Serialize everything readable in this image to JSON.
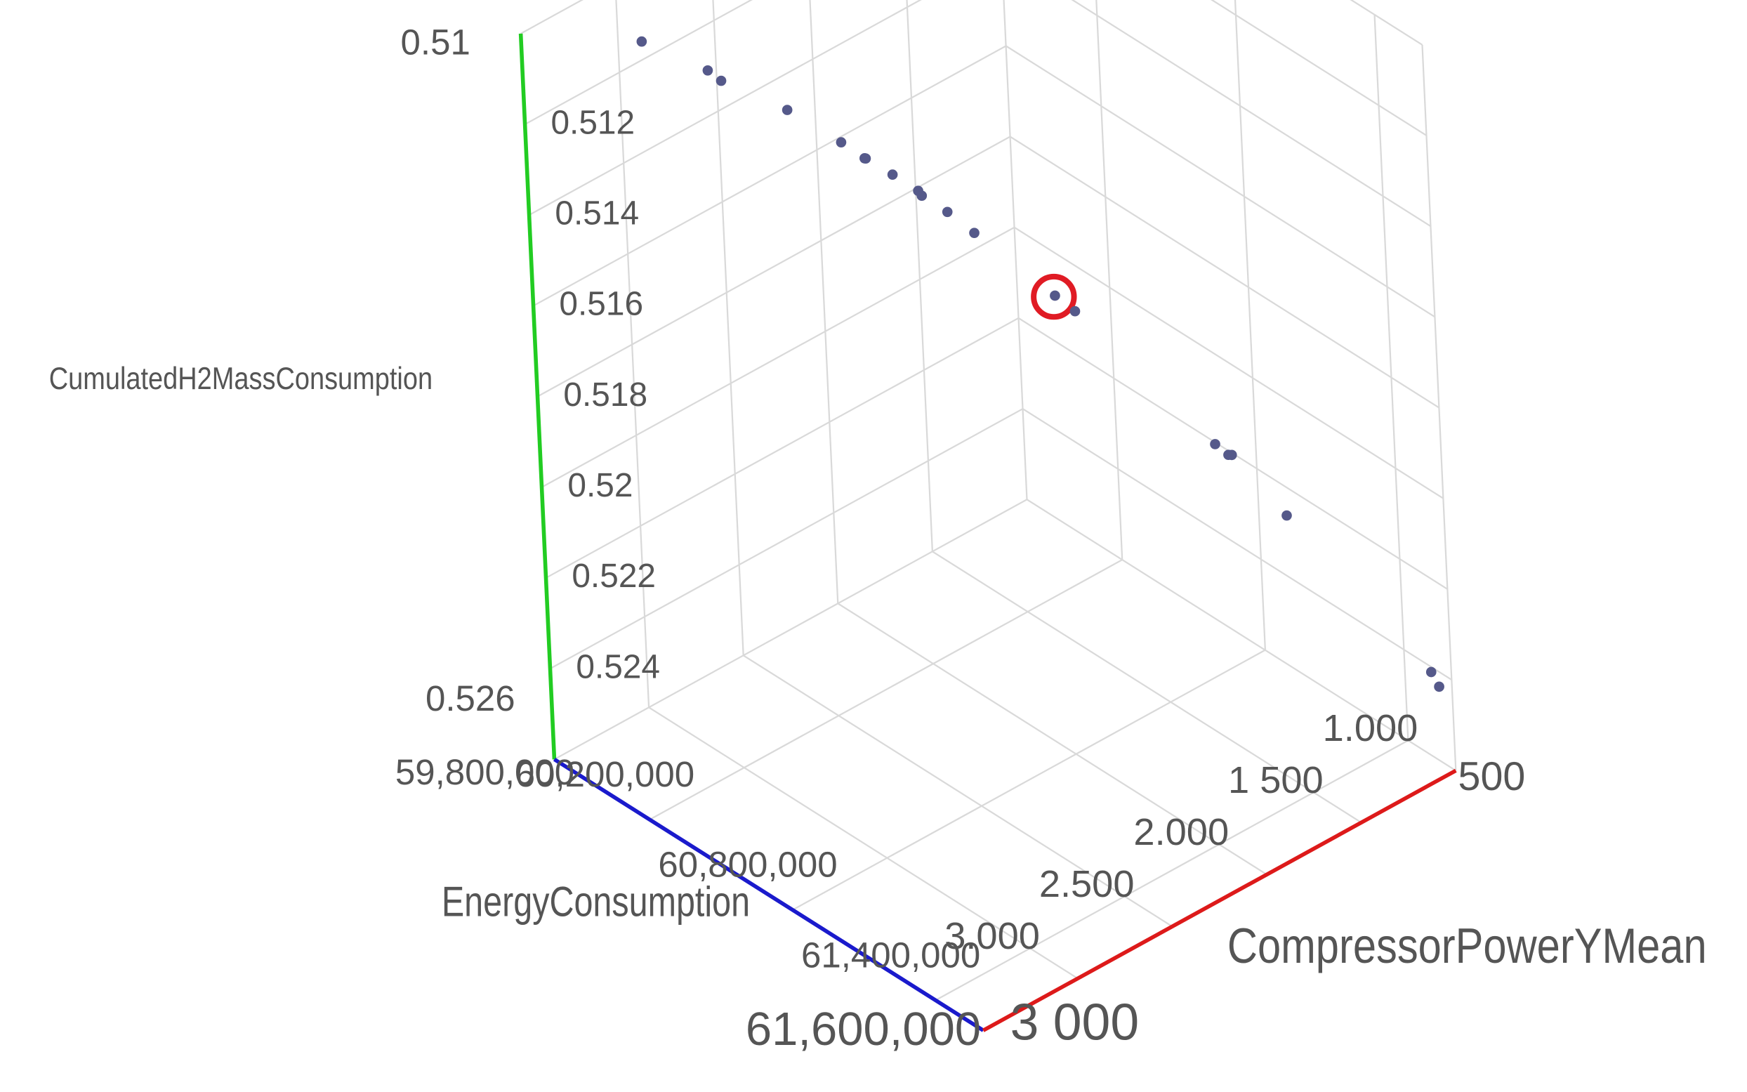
{
  "chart_data": {
    "type": "scatter3d",
    "xlabel": "EnergyConsumption",
    "ylabel": "CompressorPowerYMean",
    "zlabel": "CumulatedH2MassConsumption",
    "xlim": [
      59800000,
      61600000
    ],
    "xlim_labels": [
      "59,800,000",
      "61,600,000"
    ],
    "xticks": [
      {
        "value": 60200000,
        "label": "60,200,000"
      },
      {
        "value": 60800000,
        "label": "60,800,000"
      },
      {
        "value": 61400000,
        "label": "61,400,000"
      }
    ],
    "ylim": [
      3000,
      500
    ],
    "ylim_labels": [
      "3 000",
      "500"
    ],
    "yticks": [
      {
        "value": 1000,
        "label": "1.000"
      },
      {
        "value": 1500,
        "label": "1 500"
      },
      {
        "value": 2000,
        "label": "2.000"
      },
      {
        "value": 2500,
        "label": "2.500"
      },
      {
        "value": 3000,
        "label": "3.000"
      }
    ],
    "zlim": [
      0.526,
      0.51
    ],
    "zticks": [
      0.512,
      0.514,
      0.516,
      0.518,
      0.52,
      0.522,
      0.524
    ],
    "grid": true,
    "color": "#55598a",
    "highlight_index": 12,
    "highlight_color": "#e01b24",
    "x": [
      59800000,
      59949000,
      59979000,
      60129000,
      60250000,
      60303000,
      60306000,
      60366000,
      60424000,
      60432000,
      60490000,
      60551000,
      60733000,
      60778000,
      61094000,
      61125000,
      61132000,
      61256000,
      61582000,
      61600000
    ],
    "y": [
      2378,
      2222,
      2191,
      2036,
      1910,
      1856,
      1854,
      1791,
      1732,
      1724,
      1665,
      1604,
      1420,
      1374,
      1060,
      1031,
      1022,
      901,
      582,
      566
    ],
    "z": [
      0.5116,
      0.5121,
      0.5123,
      0.5128,
      0.5134,
      0.5137,
      0.5137,
      0.514,
      0.5143,
      0.5144,
      0.5147,
      0.5151,
      0.5163,
      0.5166,
      0.5192,
      0.5194,
      0.5194,
      0.5206,
      0.5237,
      0.524
    ]
  }
}
